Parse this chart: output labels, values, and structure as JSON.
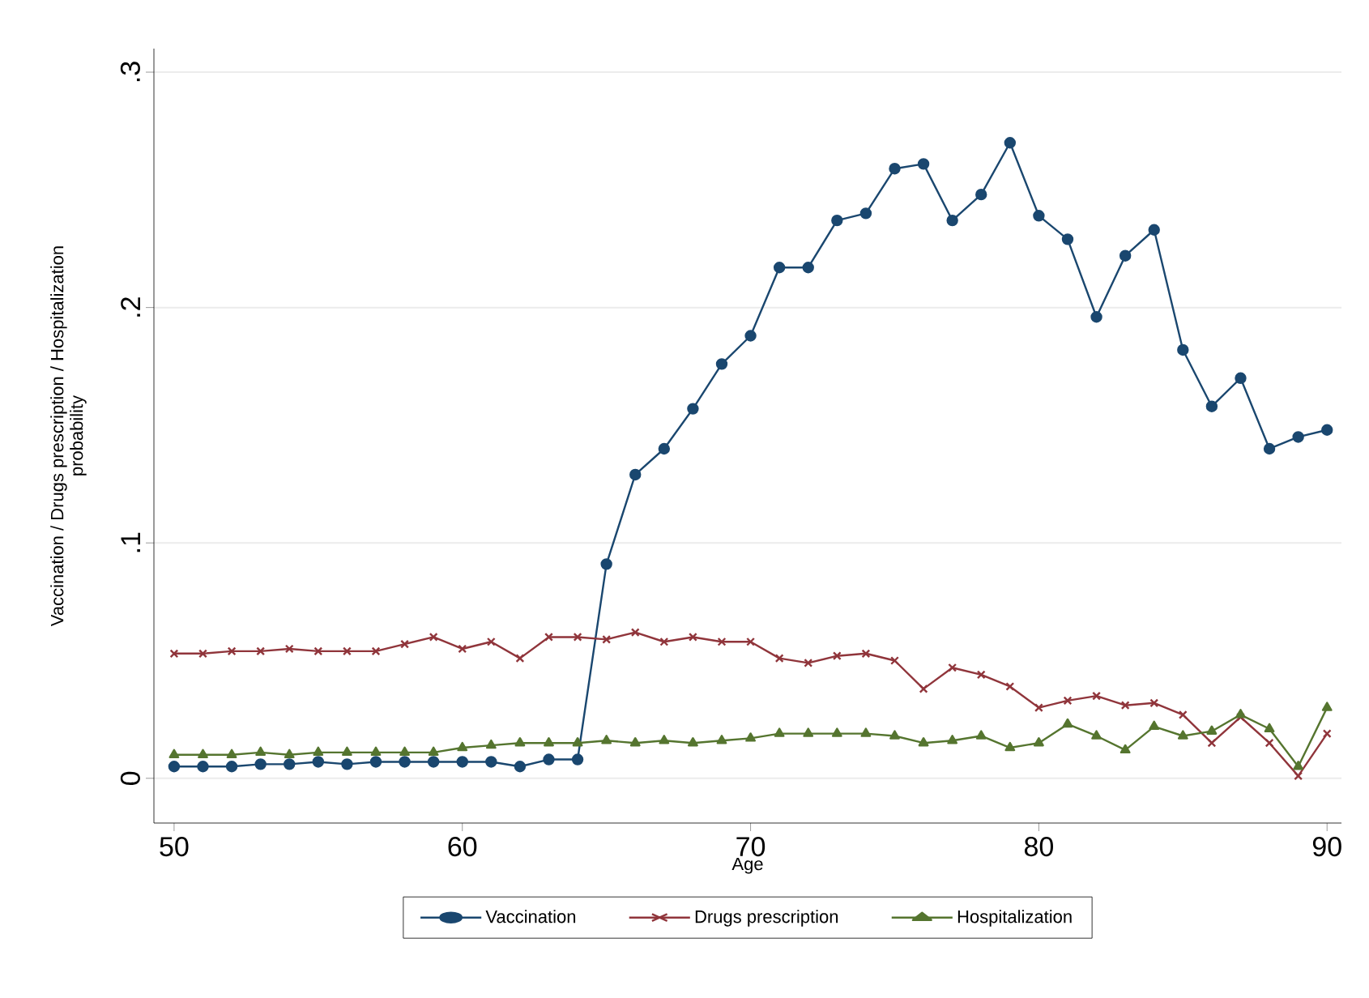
{
  "chart_data": {
    "type": "line",
    "xlabel": "Age",
    "ylabel": "Vaccination / Drugs prescription / Hospitalization probability",
    "x": [
      50,
      51,
      52,
      53,
      54,
      55,
      56,
      57,
      58,
      59,
      60,
      61,
      62,
      63,
      64,
      65,
      66,
      67,
      68,
      69,
      70,
      71,
      72,
      73,
      74,
      75,
      76,
      77,
      78,
      79,
      80,
      81,
      82,
      83,
      84,
      85,
      86,
      87,
      88,
      89,
      90
    ],
    "series": [
      {
        "name": "Vaccination",
        "color": "#1a476f",
        "marker": "circle",
        "values": [
          0.005,
          0.005,
          0.005,
          0.006,
          0.006,
          0.007,
          0.006,
          0.007,
          0.007,
          0.007,
          0.007,
          0.007,
          0.005,
          0.008,
          0.008,
          0.091,
          0.129,
          0.14,
          0.157,
          0.176,
          0.188,
          0.217,
          0.217,
          0.237,
          0.24,
          0.259,
          0.261,
          0.237,
          0.248,
          0.27,
          0.239,
          0.229,
          0.196,
          0.222,
          0.233,
          0.182,
          0.158,
          0.17,
          0.14,
          0.145,
          0.148
        ]
      },
      {
        "name": "Drugs prescription",
        "color": "#90353b",
        "marker": "cross",
        "values": [
          0.053,
          0.053,
          0.054,
          0.054,
          0.055,
          0.054,
          0.054,
          0.054,
          0.057,
          0.06,
          0.055,
          0.058,
          0.051,
          0.06,
          0.06,
          0.059,
          0.062,
          0.058,
          0.06,
          0.058,
          0.058,
          0.051,
          0.049,
          0.052,
          0.053,
          0.05,
          0.038,
          0.047,
          0.044,
          0.039,
          0.03,
          0.033,
          0.035,
          0.031,
          0.032,
          0.027,
          0.015,
          0.026,
          0.015,
          0.001,
          0.019
        ]
      },
      {
        "name": "Hospitalization",
        "color": "#55752f",
        "marker": "triangle",
        "values": [
          0.01,
          0.01,
          0.01,
          0.011,
          0.01,
          0.011,
          0.011,
          0.011,
          0.011,
          0.011,
          0.013,
          0.014,
          0.015,
          0.015,
          0.015,
          0.016,
          0.015,
          0.016,
          0.015,
          0.016,
          0.017,
          0.019,
          0.019,
          0.019,
          0.019,
          0.018,
          0.015,
          0.016,
          0.018,
          0.013,
          0.015,
          0.023,
          0.018,
          0.012,
          0.022,
          0.018,
          0.02,
          0.027,
          0.021,
          0.005,
          0.03
        ]
      }
    ],
    "xlim": [
      49.3,
      90.5
    ],
    "ylim": [
      -0.019,
      0.31
    ],
    "xticks": [
      50,
      60,
      70,
      80,
      90
    ],
    "yticks": [
      0,
      {
        "value": 0.1,
        "label": ".1"
      },
      {
        "value": 0.2,
        "label": ".2"
      },
      {
        "value": 0.3,
        "label": ".3"
      }
    ],
    "grid": "y",
    "legend": "bottom",
    "line_style": "solid"
  }
}
